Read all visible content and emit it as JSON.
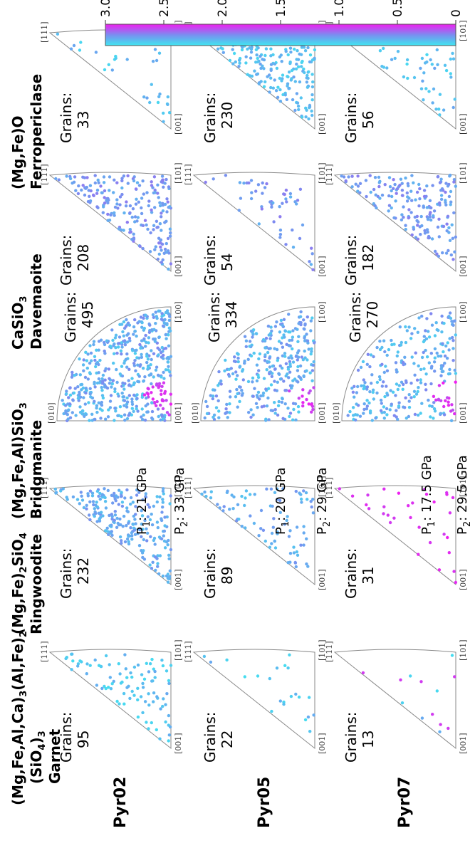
{
  "rows": [
    {
      "label": "Pyr02",
      "pressure": [
        "P",
        "1",
        ": 21 GPa",
        "P",
        "2",
        ": 33 GPa"
      ]
    },
    {
      "label": "Pyr05",
      "pressure": [
        "P",
        "1",
        ": 20 GPa",
        "P",
        "2",
        ": 29 GPa"
      ]
    },
    {
      "label": "Pyr07",
      "pressure": [
        "P",
        "1",
        ": 17.5 GPa",
        "P",
        "2",
        ": 29.5 GPa"
      ]
    }
  ],
  "columns": [
    {
      "line1": [
        "(Mg,Fe,Al,Ca)",
        "3",
        "(Al,Fe)",
        "2"
      ],
      "line2": [
        "(SiO",
        "4",
        ")",
        "3"
      ],
      "line3": "Garnet",
      "dirs": [
        "[001]",
        "[101]",
        "[111]"
      ]
    },
    {
      "line1": [
        "(Mg,Fe)",
        "2",
        "SiO",
        "4"
      ],
      "line2": [],
      "line3": "Ringwoodite",
      "dirs": [
        "[001]",
        "[101]",
        "[111]"
      ]
    },
    {
      "line1": [
        "(Mg,Fe,Al)SiO",
        "3"
      ],
      "line2": [],
      "line3": "Bridgmanite",
      "dirs": [
        "[001]",
        "[100]",
        "[010]"
      ]
    },
    {
      "line1": [
        "CaSiO",
        "3"
      ],
      "line2": [],
      "line3": "Davemaoite",
      "dirs": [
        "[001]",
        "[101]",
        "[111]"
      ]
    },
    {
      "line1": [
        "(Mg,Fe)O"
      ],
      "line2": [],
      "line3": "Ferropericlase",
      "dirs": [
        "[001]",
        "[101]",
        "[111]"
      ]
    }
  ],
  "grains_label": "Grains:",
  "grains": [
    [
      95,
      232,
      495,
      208,
      33
    ],
    [
      22,
      89,
      334,
      54,
      230
    ],
    [
      13,
      31,
      270,
      182,
      56
    ]
  ],
  "colorbar": {
    "min": 0,
    "max": 3,
    "ticks": [
      "0",
      "0.5",
      "1.0",
      "1.5",
      "2.0",
      "2.5",
      "3.0"
    ],
    "low_color": "#3fe6f0",
    "mid_color": "#7a8ef0",
    "high_color": "#f01ef0"
  },
  "chart_data": {
    "type": "scatter",
    "subtype": "inverse pole figure grid",
    "rows": [
      "Pyr02",
      "Pyr05",
      "Pyr07"
    ],
    "columns": [
      "Garnet",
      "Ringwoodite",
      "Bridgmanite",
      "Davemaoite",
      "Ferropericlase"
    ],
    "grain_counts": [
      [
        95,
        232,
        495,
        208,
        33
      ],
      [
        22,
        89,
        334,
        54,
        230
      ],
      [
        13,
        31,
        270,
        182,
        56
      ]
    ],
    "color_scale": {
      "min": 0,
      "max": 3,
      "colors": [
        "#3fe6f0",
        "#7a8ef0",
        "#f01ef0"
      ]
    }
  }
}
